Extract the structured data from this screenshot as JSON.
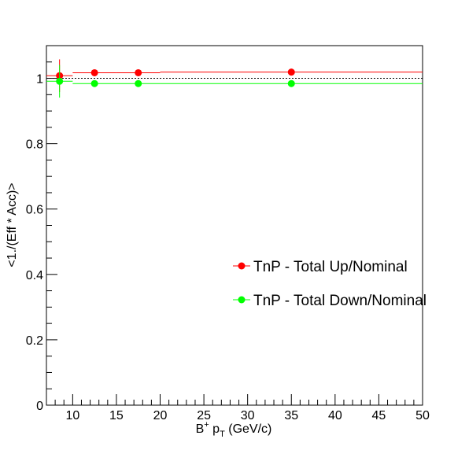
{
  "chart_data": {
    "type": "scatter",
    "title": "",
    "xlabel": {
      "base": "B",
      "sup": "+",
      "mid": " p",
      "sub": "T",
      "tail": " (GeV/c)"
    },
    "ylabel": "<1./(Eff * Acc)>",
    "xlim": [
      7,
      50
    ],
    "ylim": [
      0,
      1.1
    ],
    "x_ticks": [
      10,
      15,
      20,
      25,
      30,
      35,
      40,
      45,
      50
    ],
    "y_ticks": [
      0,
      0.2,
      0.4,
      0.6,
      0.8,
      1
    ],
    "y_tick_labels": [
      "0",
      "0.2",
      "0.4",
      "0.6",
      "0.8",
      "1"
    ],
    "reference_line": {
      "y": 1,
      "style": "dotted"
    },
    "legend_position": "center-right",
    "series": [
      {
        "name": "TnP - Total Up/Nominal",
        "color": "#ff0000",
        "points": [
          {
            "x": 8.5,
            "y": 1.008,
            "x_low": 7,
            "x_high": 10,
            "y_err": 0.05
          },
          {
            "x": 12.5,
            "y": 1.017,
            "x_low": 10,
            "x_high": 15,
            "y_err": 0.003
          },
          {
            "x": 17.5,
            "y": 1.017,
            "x_low": 15,
            "x_high": 20,
            "y_err": 0.003
          },
          {
            "x": 35,
            "y": 1.019,
            "x_low": 20,
            "x_high": 50,
            "y_err": 0.003
          }
        ]
      },
      {
        "name": "TnP - Total Down/Nominal",
        "color": "#00ff00",
        "points": [
          {
            "x": 8.5,
            "y": 0.991,
            "x_low": 7,
            "x_high": 10,
            "y_err": 0.05
          },
          {
            "x": 12.5,
            "y": 0.984,
            "x_low": 10,
            "x_high": 15,
            "y_err": 0.003
          },
          {
            "x": 17.5,
            "y": 0.984,
            "x_low": 15,
            "x_high": 20,
            "y_err": 0.003
          },
          {
            "x": 35,
            "y": 0.984,
            "x_low": 20,
            "x_high": 50,
            "y_err": 0.003
          }
        ]
      }
    ]
  }
}
